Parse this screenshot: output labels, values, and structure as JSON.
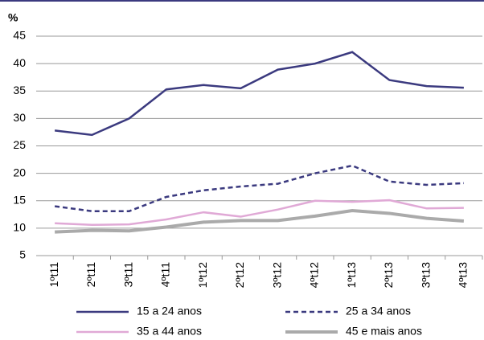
{
  "chart_data": {
    "type": "line",
    "y_label": "%",
    "categories": [
      "1ºt11",
      "2ºt11",
      "3ºt11",
      "4ºt11",
      "1ºt12",
      "2ºt12",
      "3ºt12",
      "4ºt12",
      "1ºt13",
      "2ºt13",
      "3ºt13",
      "4ºt13"
    ],
    "series": [
      {
        "name": "15 a 24 anos",
        "color": "#3b3a7f",
        "line_style": "solid",
        "values": [
          27.8,
          27,
          30,
          35.3,
          36.1,
          35.5,
          38.9,
          40,
          42.1,
          37,
          35.9,
          35.6
        ]
      },
      {
        "name": "25 a 34 anos",
        "color": "#3b3a7f",
        "line_style": "dashed",
        "values": [
          14,
          13.1,
          13.1,
          15.7,
          16.9,
          17.6,
          18.1,
          20,
          21.4,
          18.5,
          17.9,
          18.2
        ]
      },
      {
        "name": "35 a 44 anos",
        "color": "#e0a9d6",
        "line_style": "solid",
        "values": [
          10.9,
          10.6,
          10.7,
          11.6,
          12.9,
          12.1,
          13.4,
          15,
          14.8,
          15.1,
          13.6,
          13.7
        ]
      },
      {
        "name": "45 e mais anos",
        "color": "#aaaaaa",
        "line_style": "solid",
        "values": [
          9.3,
          9.6,
          9.5,
          10.2,
          11.1,
          11.4,
          11.4,
          12.2,
          13.2,
          12.7,
          11.8,
          11.3
        ]
      }
    ],
    "ylim": [
      5,
      45
    ],
    "yticks": [
      5,
      10,
      15,
      20,
      25,
      30,
      35,
      40,
      45
    ],
    "grid": true
  }
}
